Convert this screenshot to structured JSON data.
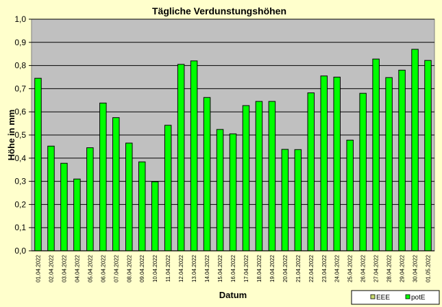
{
  "chart_data": {
    "type": "bar",
    "title": "Tägliche Verdunstungshöhen",
    "xlabel": "Datum",
    "ylabel": "Höhe in mm",
    "ylim": [
      0,
      1.0
    ],
    "yticks": [
      "0,0",
      "0,1",
      "0,2",
      "0,3",
      "0,4",
      "0,5",
      "0,6",
      "0,7",
      "0,8",
      "0,9",
      "1,0"
    ],
    "grid": true,
    "legend_position": "bottom-right",
    "legend": [
      {
        "label": "EEE",
        "color": "#c8d96f"
      },
      {
        "label": "potE",
        "color": "#00ff00"
      }
    ],
    "categories": [
      "01.04.2022",
      "02.04.2022",
      "03.04.2022",
      "04.04.2022",
      "05.04.2022",
      "06.04.2022",
      "07.04.2022",
      "08.04.2022",
      "09.04.2022",
      "10.04.2022",
      "11.04.2022",
      "12.04.2022",
      "13.04.2022",
      "14.04.2022",
      "15.04.2022",
      "16.04.2022",
      "17.04.2022",
      "18.04.2022",
      "19.04.2022",
      "20.04.2022",
      "21.04.2022",
      "22.04.2022",
      "23.04.2022",
      "24.04.2022",
      "25.04.2022",
      "26.04.2022",
      "27.04.2022",
      "28.04.2022",
      "29.04.2022",
      "30.04.2022",
      "01.05.2022"
    ],
    "series": [
      {
        "name": "potE",
        "color": "#00ff00",
        "values": [
          0.745,
          0.452,
          0.378,
          0.31,
          0.445,
          0.638,
          0.575,
          0.465,
          0.384,
          0.298,
          0.542,
          0.805,
          0.82,
          0.662,
          0.524,
          0.505,
          0.627,
          0.645,
          0.645,
          0.438,
          0.437,
          0.682,
          0.755,
          0.75,
          0.478,
          0.68,
          0.828,
          0.748,
          0.78,
          0.87,
          0.822
        ]
      }
    ],
    "colors": {
      "background": "#ffffcc",
      "plot_area": "#c0c0c0",
      "bar": "#00ff00",
      "bar_stroke": "#000000"
    }
  }
}
